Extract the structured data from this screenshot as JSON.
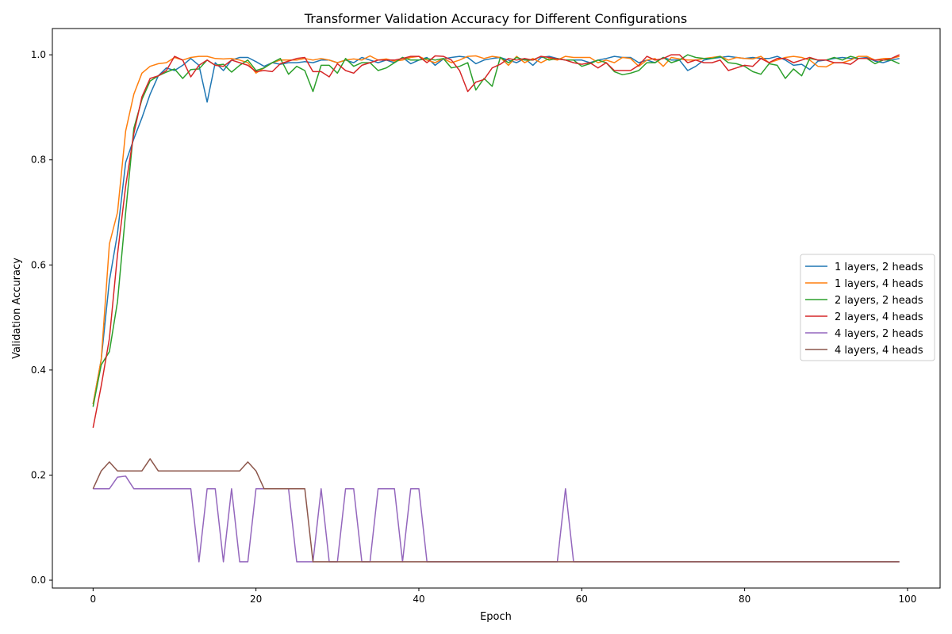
{
  "chart_data": {
    "type": "line",
    "title": "Transformer Validation Accuracy for Different Configurations",
    "xlabel": "Epoch",
    "ylabel": "Validation Accuracy",
    "xlim": [
      -5,
      104
    ],
    "ylim": [
      -0.015,
      1.05
    ],
    "xticks": [
      0,
      20,
      40,
      60,
      80,
      100
    ],
    "yticks": [
      0.0,
      0.2,
      0.4,
      0.6,
      0.8,
      1.0
    ],
    "grid": false,
    "legend_position": "center-right",
    "series": [
      {
        "name": "1 layers, 2 heads",
        "color": "#1f77b4",
        "values": [
          0.335,
          0.42,
          0.57,
          0.66,
          0.795,
          0.84,
          0.88,
          0.925,
          0.96,
          0.975,
          0.97,
          0.98,
          0.993,
          0.98,
          0.91,
          0.985,
          0.97,
          0.99,
          0.995,
          0.995,
          0.987,
          0.978,
          0.985,
          0.982,
          0.985,
          0.985,
          0.987,
          0.985,
          0.99,
          0.99,
          0.985,
          0.99,
          0.985,
          0.995,
          0.99,
          0.985,
          0.99,
          0.985,
          0.995,
          0.983,
          0.99,
          0.995,
          0.98,
          0.992,
          0.995,
          0.997,
          0.995,
          0.983,
          0.99,
          0.993,
          0.995,
          0.99,
          0.985,
          0.993,
          0.98,
          0.995,
          0.997,
          0.993,
          0.99,
          0.99,
          0.99,
          0.985,
          0.99,
          0.993,
          0.997,
          0.995,
          0.995,
          0.985,
          0.99,
          0.985,
          0.995,
          0.99,
          0.99,
          0.97,
          0.978,
          0.99,
          0.993,
          0.995,
          0.997,
          0.995,
          0.993,
          0.995,
          0.993,
          0.993,
          0.997,
          0.99,
          0.98,
          0.982,
          0.972,
          0.988,
          0.99,
          0.993,
          0.995,
          0.993,
          0.993,
          0.995,
          0.988,
          0.985,
          0.99,
          0.993
        ]
      },
      {
        "name": "1 layers, 4 heads",
        "color": "#ff7f0e",
        "values": [
          0.335,
          0.42,
          0.64,
          0.7,
          0.855,
          0.925,
          0.965,
          0.978,
          0.983,
          0.985,
          0.995,
          0.99,
          0.995,
          0.997,
          0.997,
          0.993,
          0.992,
          0.993,
          0.99,
          0.985,
          0.965,
          0.975,
          0.985,
          0.99,
          0.99,
          0.99,
          0.993,
          0.99,
          0.993,
          0.99,
          0.985,
          0.99,
          0.992,
          0.99,
          0.998,
          0.99,
          0.992,
          0.988,
          0.99,
          0.995,
          0.997,
          0.99,
          0.985,
          0.993,
          0.985,
          0.99,
          0.997,
          0.998,
          0.993,
          0.997,
          0.995,
          0.98,
          0.997,
          0.985,
          0.993,
          0.985,
          0.993,
          0.99,
          0.997,
          0.995,
          0.995,
          0.995,
          0.985,
          0.99,
          0.985,
          0.995,
          0.993,
          0.978,
          0.99,
          0.993,
          0.978,
          0.995,
          0.992,
          0.99,
          0.99,
          0.993,
          0.995,
          0.997,
          0.99,
          0.995,
          0.993,
          0.992,
          0.997,
          0.985,
          0.99,
          0.995,
          0.997,
          0.995,
          0.99,
          0.978,
          0.977,
          0.985,
          0.985,
          0.99,
          0.997,
          0.997,
          0.99,
          0.993,
          0.993,
          0.997
        ]
      },
      {
        "name": "2 layers, 2 heads",
        "color": "#2ca02c",
        "values": [
          0.33,
          0.41,
          0.435,
          0.53,
          0.7,
          0.86,
          0.915,
          0.95,
          0.96,
          0.967,
          0.973,
          0.955,
          0.972,
          0.973,
          0.99,
          0.98,
          0.982,
          0.967,
          0.98,
          0.99,
          0.97,
          0.975,
          0.985,
          0.993,
          0.963,
          0.978,
          0.97,
          0.93,
          0.98,
          0.98,
          0.965,
          0.993,
          0.978,
          0.985,
          0.985,
          0.97,
          0.975,
          0.985,
          0.995,
          0.99,
          0.99,
          0.993,
          0.99,
          0.993,
          0.975,
          0.978,
          0.985,
          0.933,
          0.955,
          0.94,
          0.995,
          0.985,
          0.995,
          0.99,
          0.99,
          0.997,
          0.99,
          0.993,
          0.99,
          0.99,
          0.978,
          0.983,
          0.99,
          0.985,
          0.968,
          0.962,
          0.965,
          0.97,
          0.985,
          0.985,
          0.995,
          0.985,
          0.99,
          1.0,
          0.995,
          0.993,
          0.993,
          0.997,
          0.985,
          0.983,
          0.978,
          0.968,
          0.963,
          0.983,
          0.98,
          0.955,
          0.973,
          0.96,
          0.993,
          0.99,
          0.99,
          0.995,
          0.99,
          0.997,
          0.993,
          0.993,
          0.983,
          0.99,
          0.99,
          0.983
        ]
      },
      {
        "name": "2 layers, 4 heads",
        "color": "#d62728",
        "values": [
          0.29,
          0.37,
          0.46,
          0.62,
          0.75,
          0.85,
          0.92,
          0.955,
          0.96,
          0.97,
          0.997,
          0.99,
          0.958,
          0.98,
          0.99,
          0.98,
          0.978,
          0.99,
          0.985,
          0.98,
          0.968,
          0.97,
          0.968,
          0.983,
          0.988,
          0.993,
          0.995,
          0.968,
          0.968,
          0.958,
          0.983,
          0.97,
          0.965,
          0.98,
          0.985,
          0.99,
          0.99,
          0.99,
          0.993,
          0.997,
          0.997,
          0.985,
          0.998,
          0.997,
          0.99,
          0.97,
          0.93,
          0.948,
          0.953,
          0.975,
          0.982,
          0.993,
          0.99,
          0.993,
          0.99,
          0.997,
          0.995,
          0.992,
          0.99,
          0.985,
          0.982,
          0.985,
          0.975,
          0.985,
          0.97,
          0.97,
          0.97,
          0.98,
          0.997,
          0.99,
          0.993,
          1.0,
          1.0,
          0.985,
          0.99,
          0.985,
          0.985,
          0.99,
          0.97,
          0.975,
          0.98,
          0.978,
          0.993,
          0.985,
          0.993,
          0.993,
          0.985,
          0.99,
          0.995,
          0.99,
          0.99,
          0.985,
          0.985,
          0.982,
          0.993,
          0.993,
          0.99,
          0.99,
          0.993,
          1.0
        ]
      },
      {
        "name": "4 layers, 2 heads",
        "color": "#9467bd",
        "values": [
          0.174,
          0.174,
          0.174,
          0.196,
          0.198,
          0.174,
          0.174,
          0.174,
          0.174,
          0.174,
          0.174,
          0.174,
          0.174,
          0.035,
          0.174,
          0.174,
          0.035,
          0.174,
          0.035,
          0.035,
          0.174,
          0.174,
          0.174,
          0.174,
          0.174,
          0.035,
          0.035,
          0.035,
          0.174,
          0.035,
          0.035,
          0.174,
          0.174,
          0.035,
          0.035,
          0.174,
          0.174,
          0.174,
          0.035,
          0.174,
          0.174,
          0.035,
          0.035,
          0.035,
          0.035,
          0.035,
          0.035,
          0.035,
          0.035,
          0.035,
          0.035,
          0.035,
          0.035,
          0.035,
          0.035,
          0.035,
          0.035,
          0.035,
          0.174,
          0.035,
          0.035,
          0.035,
          0.035,
          0.035,
          0.035,
          0.035,
          0.035,
          0.035,
          0.035,
          0.035,
          0.035,
          0.035,
          0.035,
          0.035,
          0.035,
          0.035,
          0.035,
          0.035,
          0.035,
          0.035,
          0.035,
          0.035,
          0.035,
          0.035,
          0.035,
          0.035,
          0.035,
          0.035,
          0.035,
          0.035,
          0.035,
          0.035,
          0.035,
          0.035,
          0.035,
          0.035,
          0.035,
          0.035,
          0.035,
          0.035
        ]
      },
      {
        "name": "4 layers, 4 heads",
        "color": "#8c564b",
        "values": [
          0.174,
          0.208,
          0.225,
          0.208,
          0.208,
          0.208,
          0.208,
          0.231,
          0.208,
          0.208,
          0.208,
          0.208,
          0.208,
          0.208,
          0.208,
          0.208,
          0.208,
          0.208,
          0.208,
          0.225,
          0.208,
          0.174,
          0.174,
          0.174,
          0.174,
          0.174,
          0.174,
          0.035,
          0.035,
          0.035,
          0.035,
          0.035,
          0.035,
          0.035,
          0.035,
          0.035,
          0.035,
          0.035,
          0.035,
          0.035,
          0.035,
          0.035,
          0.035,
          0.035,
          0.035,
          0.035,
          0.035,
          0.035,
          0.035,
          0.035,
          0.035,
          0.035,
          0.035,
          0.035,
          0.035,
          0.035,
          0.035,
          0.035,
          0.035,
          0.035,
          0.035,
          0.035,
          0.035,
          0.035,
          0.035,
          0.035,
          0.035,
          0.035,
          0.035,
          0.035,
          0.035,
          0.035,
          0.035,
          0.035,
          0.035,
          0.035,
          0.035,
          0.035,
          0.035,
          0.035,
          0.035,
          0.035,
          0.035,
          0.035,
          0.035,
          0.035,
          0.035,
          0.035,
          0.035,
          0.035,
          0.035,
          0.035,
          0.035,
          0.035,
          0.035,
          0.035,
          0.035,
          0.035,
          0.035,
          0.035
        ]
      }
    ]
  }
}
